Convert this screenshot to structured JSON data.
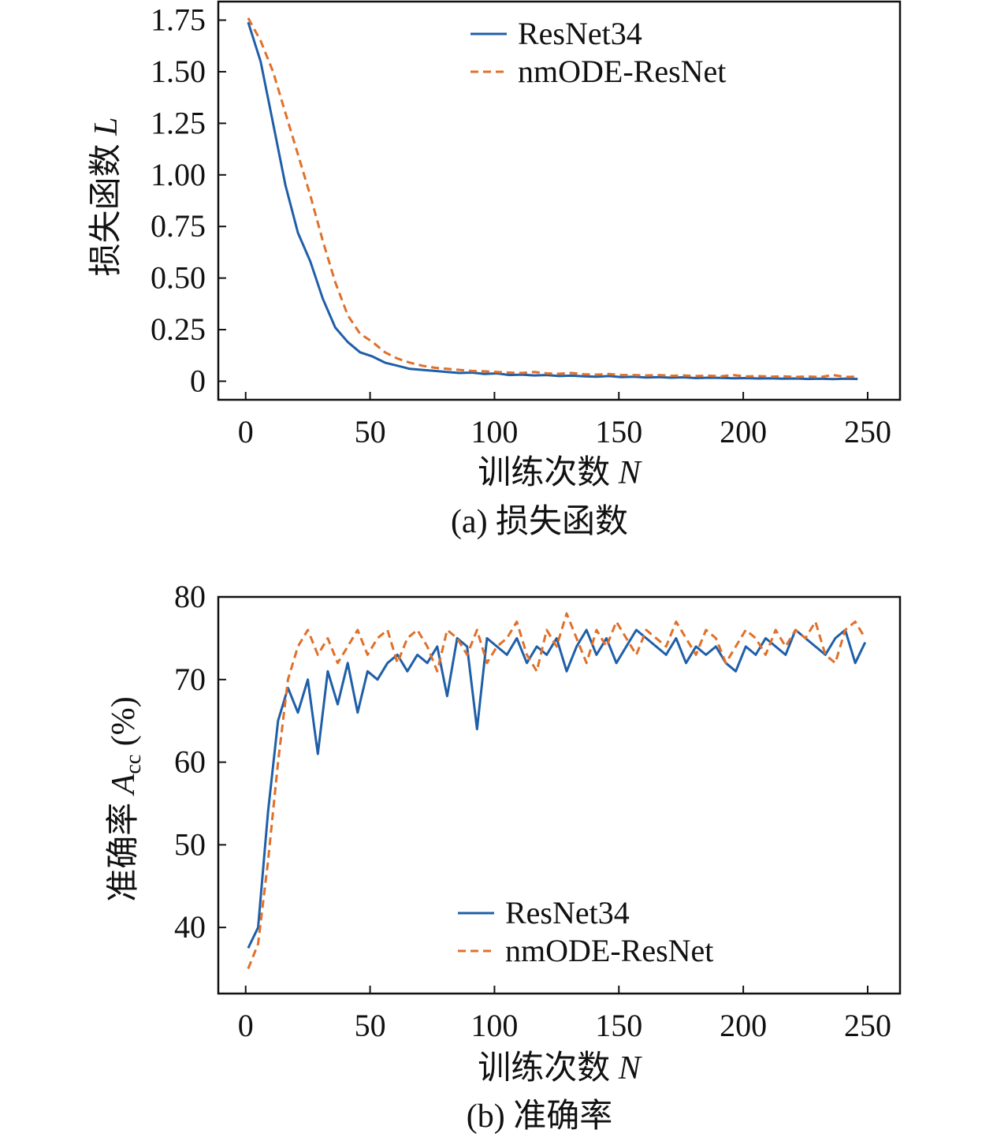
{
  "chart_data": [
    {
      "type": "line",
      "caption": "(a) 损失函数",
      "xlabel": "训练次数",
      "xlabel_var": "N",
      "ylabel": "损失函数",
      "ylabel_var": "L",
      "xlim": [
        -11,
        263
      ],
      "ylim": [
        -0.09,
        1.84
      ],
      "xticks": [
        0,
        50,
        100,
        150,
        200,
        250
      ],
      "xtick_labels": [
        "0",
        "50",
        "100",
        "150",
        "200",
        "250"
      ],
      "yticks": [
        0,
        0.25,
        0.5,
        0.75,
        1.0,
        1.25,
        1.5,
        1.75
      ],
      "ytick_labels": [
        "0",
        "0.25",
        "0.50",
        "0.75",
        "1.00",
        "1.25",
        "1.50",
        "1.75"
      ],
      "legend_position": "top-right",
      "x_start": 1,
      "x_step": 5,
      "series": [
        {
          "name": "ResNet34",
          "color": "#1f5fa8",
          "style": "solid",
          "values": [
            1.74,
            1.55,
            1.25,
            0.95,
            0.72,
            0.58,
            0.4,
            0.26,
            0.19,
            0.14,
            0.12,
            0.09,
            0.075,
            0.06,
            0.055,
            0.05,
            0.045,
            0.04,
            0.042,
            0.035,
            0.038,
            0.03,
            0.032,
            0.028,
            0.03,
            0.025,
            0.027,
            0.024,
            0.022,
            0.025,
            0.02,
            0.022,
            0.018,
            0.02,
            0.017,
            0.019,
            0.015,
            0.017,
            0.016,
            0.014,
            0.015,
            0.013,
            0.014,
            0.012,
            0.013,
            0.011,
            0.012,
            0.01,
            0.012,
            0.011
          ]
        },
        {
          "name": "nmODE-ResNet",
          "color": "#e0702a",
          "style": "dashed",
          "values": [
            1.76,
            1.65,
            1.5,
            1.3,
            1.1,
            0.9,
            0.68,
            0.48,
            0.32,
            0.23,
            0.19,
            0.14,
            0.11,
            0.09,
            0.075,
            0.065,
            0.06,
            0.055,
            0.05,
            0.048,
            0.045,
            0.042,
            0.04,
            0.045,
            0.038,
            0.036,
            0.04,
            0.034,
            0.032,
            0.035,
            0.03,
            0.03,
            0.028,
            0.03,
            0.026,
            0.028,
            0.025,
            0.027,
            0.024,
            0.03,
            0.023,
            0.025,
            0.022,
            0.024,
            0.021,
            0.023,
            0.02,
            0.03,
            0.021,
            0.022
          ]
        }
      ]
    },
    {
      "type": "line",
      "caption": "(b) 准确率",
      "xlabel": "训练次数",
      "xlabel_var": "N",
      "ylabel": "准确率",
      "ylabel_var": "A",
      "ylabel_sub": "cc",
      "ylabel_unit": "(%)",
      "xlim": [
        -11,
        263
      ],
      "ylim": [
        32,
        80
      ],
      "xticks": [
        0,
        50,
        100,
        150,
        200,
        250
      ],
      "xtick_labels": [
        "0",
        "50",
        "100",
        "150",
        "200",
        "250"
      ],
      "yticks": [
        40,
        50,
        60,
        70,
        80
      ],
      "ytick_labels": [
        "40",
        "50",
        "60",
        "70",
        "80"
      ],
      "legend_position": "bottom-center",
      "x_start": 1,
      "x_step": 4,
      "series": [
        {
          "name": "ResNet34",
          "color": "#1f5fa8",
          "style": "solid",
          "values": [
            37.5,
            40,
            54,
            65,
            69,
            66,
            70,
            61,
            71,
            67,
            72,
            66,
            71,
            70,
            72,
            73,
            71,
            73,
            72,
            74,
            68,
            75,
            74,
            64,
            75,
            74,
            73,
            75,
            72,
            74,
            73,
            75,
            71,
            74,
            76,
            73,
            75,
            72,
            74,
            76,
            75,
            74,
            73,
            75,
            72,
            74,
            73,
            74,
            72,
            71,
            74,
            73,
            75,
            74,
            73,
            76,
            75,
            74,
            73,
            75,
            76,
            72,
            74.5
          ]
        },
        {
          "name": "nmODE-ResNet",
          "color": "#e0702a",
          "style": "dashed",
          "values": [
            35,
            38,
            48,
            60,
            70,
            74,
            76,
            73,
            75,
            72,
            74,
            76,
            73,
            75,
            76,
            72,
            75,
            76,
            74,
            71,
            76,
            75,
            73,
            76,
            72,
            74,
            75,
            77,
            73,
            71,
            76,
            74,
            78,
            75,
            72,
            76,
            74,
            77,
            75,
            73,
            76,
            75,
            74,
            77,
            75,
            73,
            76,
            75,
            72,
            74,
            76,
            75,
            73,
            76,
            74,
            76,
            75,
            77,
            73,
            72,
            76,
            77,
            75
          ]
        }
      ]
    }
  ]
}
